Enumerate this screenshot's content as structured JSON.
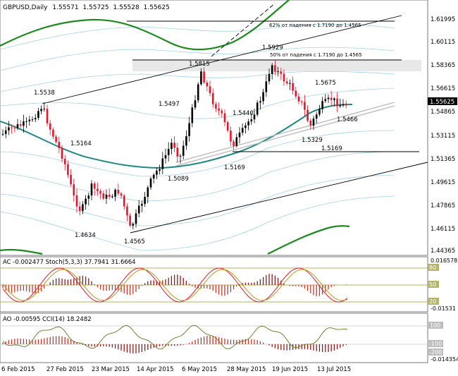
{
  "window": {
    "symbol": "GBPUSD,Daily",
    "ohlc": [
      "1.55571",
      "1.55725",
      "1.55528",
      "1.55625"
    ]
  },
  "main_chart": {
    "price_axis": [
      "1.61995",
      "1.60115",
      "1.58365",
      "1.56615",
      "1.54865",
      "1.53115",
      "1.51365",
      "1.49615",
      "1.47865",
      "1.46115",
      "1.44365"
    ],
    "current_price": "1.55625",
    "annotations": [
      "1.5538",
      "1.5164",
      "1.4634",
      "1.4565",
      "1.5497",
      "1.5089",
      "1.5815",
      "1.5440",
      "1.5169",
      "1.5929",
      "1.5675",
      "1.5466",
      "1.5329",
      "1.5169"
    ],
    "fib_labels": [
      "62% от падения с 1.7190 до 1.4565",
      "50% от падения с 1.7190 до 1.4565"
    ],
    "colors": {
      "bull": "#000000",
      "bear": "#e8142b",
      "ma_teal": "#1f8a84",
      "ma_green": "#1a8a1a",
      "bands": "#9fd2ea"
    }
  },
  "ac_panel": {
    "title": "AC -0.002477  Stoch(5,3,3) 37.7941 31.6664",
    "axis": [
      "0.016578",
      "80",
      "50",
      "20",
      "-0.01531"
    ]
  },
  "ao_panel": {
    "title": "AO -0.00595  CCI(14) 18.2482",
    "axis": [
      "100",
      "-100",
      "-200",
      "-0.014354"
    ]
  },
  "x_axis": [
    "6 Feb 2015",
    "27 Feb 2015",
    "23 Mar 2015",
    "14 Apr 2015",
    "6 May 2015",
    "28 May 2015",
    "19 Jun 2015",
    "13 Jul 2015"
  ]
}
